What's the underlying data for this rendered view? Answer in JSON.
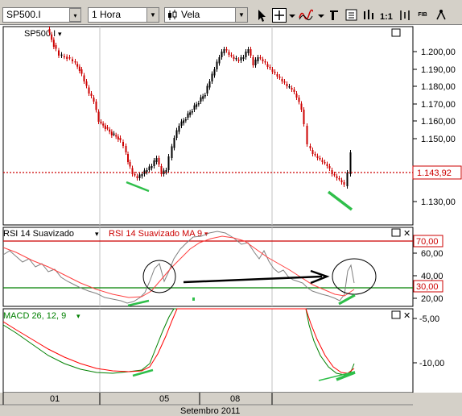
{
  "toolbar": {
    "symbol": "SP500.I",
    "period": "1 Hora",
    "chart_type": "Vela",
    "symbol_button_glyph": "▾",
    "drop_glyph": "▼",
    "fib_label": "FIB",
    "icons": [
      "cursor-arrow-icon",
      "crosshair-icon",
      "dropdown-arrow-icon",
      "indicator-wave-icon",
      "dropdown-arrow-icon",
      "text-tool-icon",
      "properties-icon",
      "zoom-in-icon",
      "zoom-out-icon",
      "bar-spacing-icon",
      "fibonacci-icon"
    ]
  },
  "price_panel": {
    "title": "SP500.I",
    "title_arrow": "▾",
    "y_ticks": [
      "1.200,00",
      "1.190,00",
      "1.180,00",
      "1.170,00",
      "1.160,00",
      "1.150,00",
      "1.140,00",
      "1.130,00"
    ],
    "current_price": "1.143,92",
    "colors": {
      "up": "#000000",
      "down": "#cc0000",
      "price_line": "#cc0000"
    }
  },
  "rsi_panel": {
    "title": "RSI 14 Suavizado",
    "title_arrow": "▾",
    "ma_title": "RSI 14 Suavizado MA 9",
    "ma_arrow": "▾",
    "y_ticks": [
      "60,00",
      "40,00",
      "20,00"
    ],
    "upper_level": "70,00",
    "lower_level": "30,00",
    "colors": {
      "upper": "#cc0000",
      "lower": "#008000",
      "rsi": "#808080",
      "ma": "#ff4040"
    }
  },
  "macd_panel": {
    "title": "MACD 26, 12, 9",
    "title_arrow": "▾",
    "y_ticks": [
      "-5,00",
      "-10,00"
    ],
    "colors": {
      "macd": "#008000",
      "signal": "#ff0000"
    }
  },
  "time_axis": {
    "labels": [
      "01",
      "05",
      "08"
    ],
    "month_label": "Setembro 2011"
  },
  "window_buttons": {
    "max_glyph": "□",
    "close_glyph": "✕"
  }
}
